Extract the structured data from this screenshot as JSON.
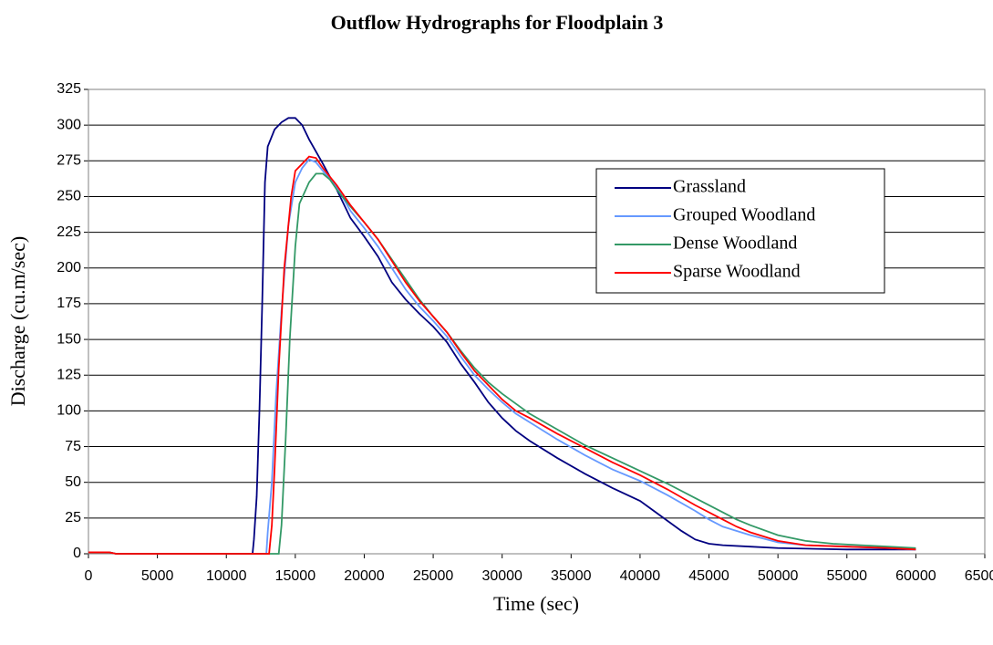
{
  "chart_data": {
    "type": "line",
    "title": "Outflow Hydrographs for Floodplain 3",
    "x_label": "Time (sec)",
    "y_label": "Discharge (cu.m/sec)",
    "xlim": [
      0,
      65000
    ],
    "xticks": [
      0,
      5000,
      10000,
      15000,
      20000,
      25000,
      30000,
      35000,
      40000,
      45000,
      50000,
      55000,
      60000,
      65000
    ],
    "ylim": [
      0,
      325
    ],
    "yticks": [
      0,
      25,
      50,
      75,
      100,
      125,
      150,
      175,
      200,
      225,
      250,
      275,
      300,
      325
    ],
    "grid": true,
    "legend": "right",
    "series": [
      {
        "name": "Grassland",
        "color": "#000080",
        "x": [
          0,
          1500,
          2000,
          11900,
          12000,
          12200,
          12400,
          12600,
          12800,
          13000,
          13500,
          14000,
          14500,
          15000,
          15500,
          16000,
          17000,
          18000,
          19000,
          20000,
          21000,
          22000,
          23000,
          24000,
          25000,
          26000,
          27000,
          28000,
          29000,
          30000,
          31000,
          32000,
          34000,
          36000,
          38000,
          40000,
          41000,
          42000,
          43000,
          44000,
          45000,
          46000,
          48000,
          50000,
          55000,
          60000
        ],
        "values": [
          1,
          1,
          0,
          0,
          10,
          40,
          100,
          175,
          260,
          285,
          297,
          302,
          305,
          305,
          300,
          290,
          273,
          255,
          235,
          222,
          208,
          190,
          178,
          168,
          159,
          148,
          133,
          120,
          106,
          95,
          86,
          79,
          67,
          56,
          46,
          37,
          30,
          23,
          16,
          10,
          7,
          6,
          5,
          4,
          3,
          3
        ]
      },
      {
        "name": "Grouped Woodland",
        "color": "#6699ff",
        "x": [
          0,
          1500,
          2000,
          12900,
          13000,
          13300,
          13600,
          14000,
          14500,
          15000,
          15500,
          16000,
          16500,
          17000,
          18000,
          19000,
          20000,
          21000,
          22000,
          23000,
          24000,
          25000,
          26000,
          27000,
          28000,
          29000,
          30000,
          31000,
          32000,
          34000,
          36000,
          38000,
          40000,
          42000,
          44000,
          45000,
          46000,
          48000,
          50000,
          52000,
          55000,
          58000,
          60000
        ],
        "values": [
          1,
          1,
          0,
          0,
          15,
          50,
          110,
          170,
          230,
          260,
          270,
          276,
          274,
          268,
          257,
          240,
          228,
          215,
          200,
          185,
          173,
          163,
          152,
          138,
          125,
          115,
          106,
          98,
          92,
          80,
          69,
          59,
          51,
          41,
          30,
          24,
          19,
          13,
          8,
          6,
          5,
          4,
          3
        ]
      },
      {
        "name": "Dense Woodland",
        "color": "#339966",
        "x": [
          0,
          1500,
          2000,
          13800,
          14000,
          14300,
          14600,
          15000,
          15300,
          16000,
          16500,
          17000,
          17500,
          18000,
          19000,
          20000,
          21000,
          22000,
          23000,
          24000,
          25000,
          26000,
          27000,
          28000,
          29000,
          30000,
          31000,
          32000,
          34000,
          36000,
          38000,
          40000,
          42000,
          44000,
          46000,
          47000,
          48000,
          50000,
          52000,
          54000,
          56000,
          58000,
          60000
        ],
        "values": [
          1,
          1,
          0,
          0,
          20,
          80,
          150,
          215,
          245,
          260,
          266,
          266,
          262,
          255,
          243,
          232,
          220,
          206,
          192,
          178,
          166,
          155,
          142,
          130,
          120,
          112,
          105,
          98,
          87,
          76,
          67,
          58,
          49,
          39,
          29,
          24,
          20,
          13,
          9,
          7,
          6,
          5,
          4
        ]
      },
      {
        "name": "Sparse Woodland",
        "color": "#ff0000",
        "x": [
          0,
          1500,
          2000,
          13100,
          13300,
          13500,
          13800,
          14200,
          14700,
          15000,
          15500,
          16000,
          16500,
          17000,
          18000,
          19000,
          20000,
          21000,
          22000,
          23000,
          24000,
          25000,
          26000,
          27000,
          28000,
          29000,
          30000,
          31000,
          32000,
          34000,
          36000,
          38000,
          40000,
          42000,
          44000,
          46000,
          47000,
          48000,
          50000,
          52000,
          55000,
          58000,
          60000
        ],
        "values": [
          1,
          1,
          0,
          0,
          20,
          60,
          130,
          200,
          250,
          268,
          273,
          278,
          277,
          270,
          258,
          244,
          232,
          220,
          205,
          190,
          177,
          166,
          155,
          141,
          128,
          118,
          108,
          100,
          95,
          84,
          74,
          64,
          55,
          45,
          34,
          24,
          19,
          15,
          9,
          6,
          5,
          4,
          3
        ]
      }
    ]
  }
}
